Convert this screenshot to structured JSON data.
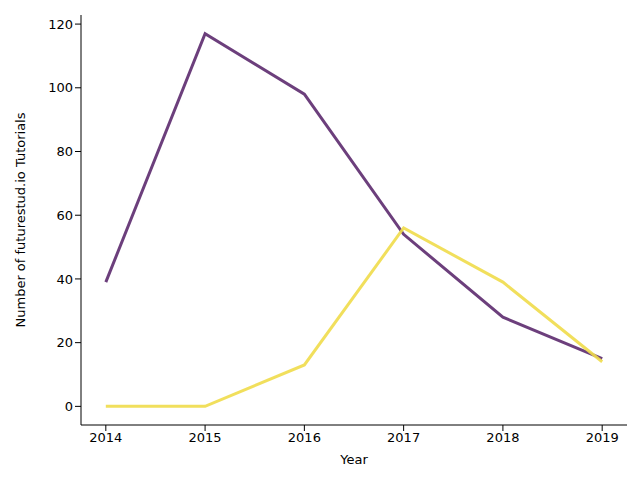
{
  "chart_data": {
    "type": "line",
    "x_label": "Year",
    "y_label": "Number of futurestud.io Tutorials",
    "x": [
      2014,
      2015,
      2016,
      2017,
      2018,
      2019
    ],
    "series": [
      {
        "color": "#5c2a6e",
        "values": [
          39,
          117,
          98,
          54,
          28,
          15
        ]
      },
      {
        "color": "#f0dc4a",
        "values": [
          0,
          0,
          13,
          56,
          39,
          14
        ]
      }
    ],
    "xlim": [
      2013.75,
      2019.25
    ],
    "xticks": [
      2014,
      2015,
      2016,
      2017,
      2018,
      2019
    ],
    "ylim": [
      -5.85,
      122.85
    ],
    "yticks": [
      0,
      20,
      40,
      60,
      80,
      100,
      120
    ],
    "grid": false
  }
}
